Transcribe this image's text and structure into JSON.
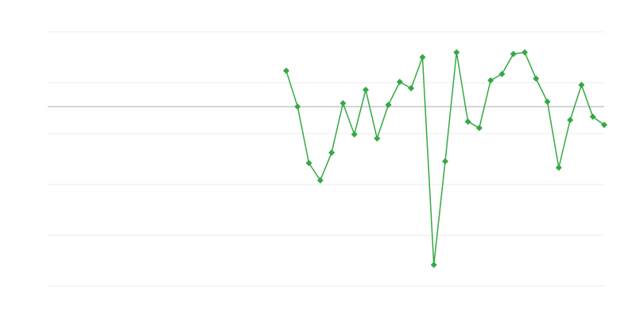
{
  "chart_data": {
    "type": "line",
    "x": [
      21,
      22,
      23,
      24,
      25,
      26,
      27,
      28,
      29,
      30,
      31,
      32,
      33,
      34,
      35,
      36,
      37,
      38,
      39,
      40,
      41,
      42,
      43,
      44,
      45,
      46,
      47,
      48,
      49
    ],
    "series": [
      {
        "color": "#34a844",
        "values": [
          84.7,
          70.6,
          48.4,
          41.6,
          52.5,
          71.9,
          59.7,
          77.2,
          58.1,
          71.3,
          80.3,
          77.8,
          90,
          8.4,
          49.1,
          91.9,
          64.7,
          62.2,
          80.9,
          83.4,
          91.3,
          91.9,
          81.6,
          72.5,
          46.6,
          65.3,
          79.1,
          66.6,
          63.4
        ]
      }
    ],
    "xlim": [
      0,
      49
    ],
    "ylim": [
      0,
      100
    ],
    "yticks": [
      0,
      20,
      40,
      60,
      80,
      100
    ],
    "grid": true,
    "reference_line": 70.6
  }
}
